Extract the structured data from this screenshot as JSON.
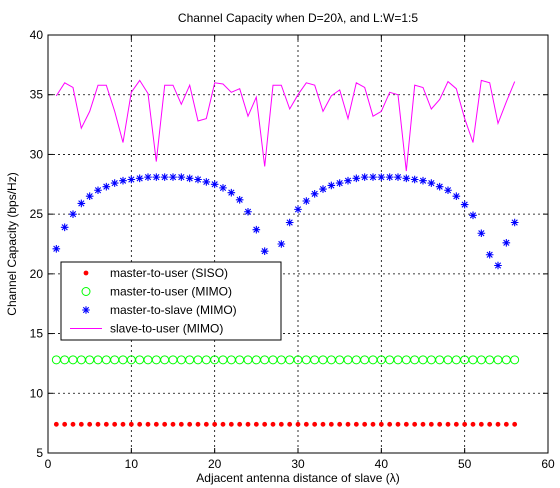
{
  "chart_data": {
    "type": "scatter",
    "title": "Channel Capacity when D=20λ, and L:W=1:5",
    "xlabel": "Adjacent antenna distance of slave (λ)",
    "ylabel": "Channel Capacity (bps/Hz)",
    "xlim": [
      0,
      60
    ],
    "ylim": [
      5,
      40
    ],
    "xticks": [
      0,
      10,
      20,
      30,
      40,
      50,
      60
    ],
    "yticks": [
      5,
      10,
      15,
      20,
      25,
      30,
      35,
      40
    ],
    "grid": true,
    "legend_position": "lower-left",
    "x": [
      1,
      2,
      3,
      4,
      5,
      6,
      7,
      8,
      9,
      10,
      11,
      12,
      13,
      14,
      15,
      16,
      17,
      18,
      19,
      20,
      21,
      22,
      23,
      24,
      25,
      26,
      27,
      28,
      29,
      30,
      31,
      32,
      33,
      34,
      35,
      36,
      37,
      38,
      39,
      40,
      41,
      42,
      43,
      44,
      45,
      46,
      47,
      48,
      49,
      50,
      51,
      52,
      53,
      54,
      55,
      56
    ],
    "series": [
      {
        "name": "master-to-user (SISO)",
        "marker": "dot",
        "color": "#ff0000",
        "values": [
          7.4,
          7.4,
          7.4,
          7.4,
          7.4,
          7.4,
          7.4,
          7.4,
          7.4,
          7.4,
          7.4,
          7.4,
          7.4,
          7.4,
          7.4,
          7.4,
          7.4,
          7.4,
          7.4,
          7.4,
          7.4,
          7.4,
          7.4,
          7.4,
          7.4,
          7.4,
          7.4,
          7.4,
          7.4,
          7.4,
          7.4,
          7.4,
          7.4,
          7.4,
          7.4,
          7.4,
          7.4,
          7.4,
          7.4,
          7.4,
          7.4,
          7.4,
          7.4,
          7.4,
          7.4,
          7.4,
          7.4,
          7.4,
          7.4,
          7.4,
          7.4,
          7.4,
          7.4,
          7.4,
          7.4,
          7.4
        ]
      },
      {
        "name": "master-to-user (MIMO)",
        "marker": "circle",
        "color": "#00ff00",
        "values": [
          12.8,
          12.8,
          12.8,
          12.8,
          12.8,
          12.8,
          12.8,
          12.8,
          12.8,
          12.8,
          12.8,
          12.8,
          12.8,
          12.8,
          12.8,
          12.8,
          12.8,
          12.8,
          12.8,
          12.8,
          12.8,
          12.8,
          12.8,
          12.8,
          12.8,
          12.8,
          12.8,
          12.8,
          12.8,
          12.8,
          12.8,
          12.8,
          12.8,
          12.8,
          12.8,
          12.8,
          12.8,
          12.8,
          12.8,
          12.8,
          12.8,
          12.8,
          12.8,
          12.8,
          12.8,
          12.8,
          12.8,
          12.8,
          12.8,
          12.8,
          12.8,
          12.8,
          12.8,
          12.8,
          12.8,
          12.8
        ]
      },
      {
        "name": "master-to-slave (MIMO)",
        "marker": "star",
        "color": "#0000ff",
        "values": [
          22.1,
          23.9,
          25.0,
          25.9,
          26.5,
          27.0,
          27.3,
          27.6,
          27.8,
          27.9,
          28.0,
          28.1,
          28.1,
          28.1,
          28.1,
          28.1,
          28.0,
          27.9,
          27.7,
          27.5,
          27.2,
          26.8,
          26.2,
          25.2,
          23.7,
          21.9,
          20.7,
          22.5,
          24.3,
          25.4,
          26.1,
          26.7,
          27.1,
          27.4,
          27.6,
          27.8,
          28.0,
          28.1,
          28.1,
          28.1,
          28.1,
          28.1,
          28.0,
          27.9,
          27.8,
          27.6,
          27.3,
          27.0,
          26.5,
          25.8,
          24.9,
          23.4,
          21.6,
          20.7,
          22.6,
          24.3
        ]
      },
      {
        "name": "slave-to-user (MIMO)",
        "marker": "line",
        "color": "#ff00ff",
        "values": [
          34.9,
          36.0,
          35.6,
          32.2,
          33.6,
          35.8,
          35.8,
          33.6,
          31.0,
          35.2,
          36.2,
          35.1,
          29.4,
          35.8,
          35.8,
          34.2,
          35.8,
          32.8,
          33.0,
          36.0,
          35.9,
          35.2,
          35.5,
          33.2,
          34.8,
          29.0,
          35.8,
          35.8,
          33.8,
          35.0,
          36.0,
          35.8,
          33.6,
          34.9,
          35.4,
          33.0,
          36.0,
          35.6,
          33.2,
          33.6,
          35.2,
          35.0,
          28.6,
          35.8,
          35.6,
          33.8,
          34.6,
          36.1,
          35.5,
          33.0,
          31.0,
          36.2,
          36.0,
          32.6,
          34.4,
          36.1
        ]
      }
    ]
  }
}
